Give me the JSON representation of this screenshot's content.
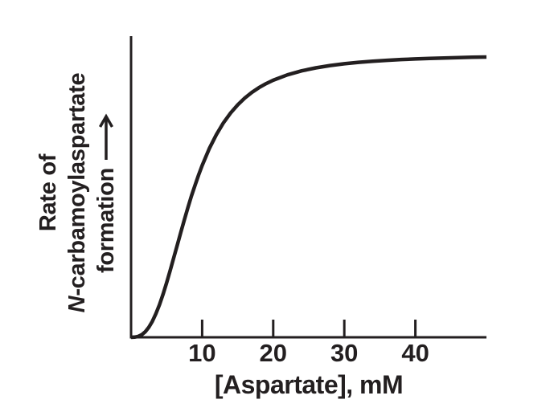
{
  "figure": {
    "background": "#ffffff",
    "ink_color": "#231f20"
  },
  "y_axis": {
    "label": {
      "line1": "Rate of",
      "line2_italic": "N",
      "line2_rest": "-carbamoylaspartate",
      "line3": "formation"
    },
    "arrow_icon": "long-increase-arrow"
  },
  "x_axis": {
    "title": "[Aspartate], mM",
    "tick_labels": [
      "10",
      "20",
      "30",
      "40"
    ]
  },
  "chart_data": {
    "type": "line",
    "title": "",
    "xlabel": "[Aspartate], mM",
    "ylabel": "Rate of N-carbamoylaspartate formation (unlabeled axis, arbitrary units, arrow indicates increasing rate)",
    "xlim": [
      0,
      50
    ],
    "ylim": [
      0,
      1.075
    ],
    "x_ticks": [
      10,
      20,
      30,
      40
    ],
    "y_ticks": [],
    "grid": false,
    "legend": "none",
    "curve_shape": "sigmoidal saturation curve (cooperative / allosteric kinetics)",
    "model": {
      "form": "hill",
      "hill_coefficient": 2.7,
      "k_half_mM": 8.5,
      "vmax_normalized": 1.0
    },
    "series": [
      {
        "name": "rate of N-carbamoylaspartate formation vs [Aspartate]",
        "points": [
          [
            0,
            0
          ],
          [
            0.5,
            0.0005
          ],
          [
            1,
            0.0031
          ],
          [
            1.5,
            0.0092
          ],
          [
            2,
            0.0199
          ],
          [
            2.5,
            0.0357
          ],
          [
            3,
            0.0571
          ],
          [
            3.5,
            0.0841
          ],
          [
            4,
            0.1165
          ],
          [
            4.5,
            0.1535
          ],
          [
            5,
            0.1943
          ],
          [
            5.5,
            0.2378
          ],
          [
            6,
            0.2831
          ],
          [
            6.5,
            0.3292
          ],
          [
            7,
            0.3749
          ],
          [
            7.5,
            0.4195
          ],
          [
            8,
            0.4628
          ],
          [
            8.5,
            0.5042
          ],
          [
            9,
            0.5428
          ],
          [
            9.5,
            0.5791
          ],
          [
            10,
            0.613
          ],
          [
            11,
            0.6729
          ],
          [
            12,
            0.7233
          ],
          [
            13,
            0.7653
          ],
          [
            14,
            0.8003
          ],
          [
            15,
            0.8293
          ],
          [
            16,
            0.8536
          ],
          [
            17,
            0.8738
          ],
          [
            18,
            0.8908
          ],
          [
            19,
            0.9051
          ],
          [
            20,
            0.9173
          ],
          [
            22,
            0.9365
          ],
          [
            24,
            0.9507
          ],
          [
            26,
            0.9614
          ],
          [
            28,
            0.9695
          ],
          [
            30,
            0.9759
          ],
          [
            32,
            0.981
          ],
          [
            34,
            0.985
          ],
          [
            36,
            0.9883
          ],
          [
            38,
            0.991
          ],
          [
            40,
            0.9932
          ],
          [
            42,
            0.995
          ],
          [
            44,
            0.9966
          ],
          [
            46,
            0.9979
          ],
          [
            48,
            0.999
          ],
          [
            50,
            1
          ]
        ]
      }
    ]
  }
}
